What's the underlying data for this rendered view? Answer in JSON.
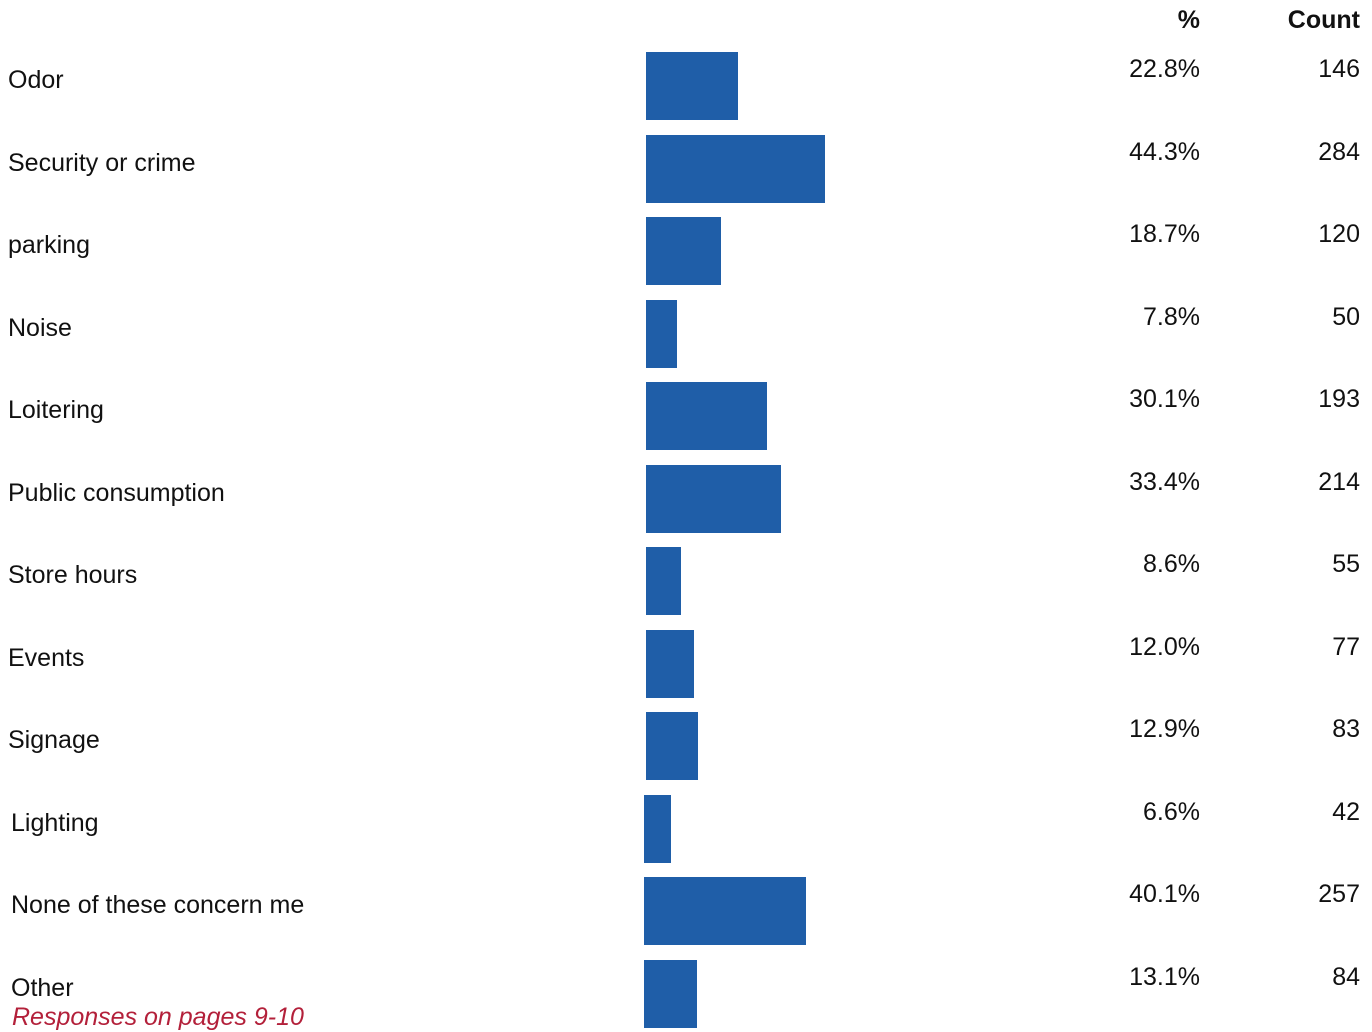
{
  "chart_data": {
    "type": "bar",
    "orientation": "horizontal",
    "columns": {
      "percent": "%",
      "count": "Count"
    },
    "categories": [
      "Odor",
      "Security or crime",
      "parking",
      "Noise",
      "Loitering",
      "Public consumption",
      "Store hours",
      "Events",
      "Signage",
      "Lighting",
      "None of these concern me",
      "Other"
    ],
    "percents": [
      22.8,
      44.3,
      18.7,
      7.8,
      30.1,
      33.4,
      8.6,
      12.0,
      12.9,
      6.6,
      40.1,
      13.1
    ],
    "percent_labels": [
      "22.8%",
      "44.3%",
      "18.7%",
      "7.8%",
      "30.1%",
      "33.4%",
      "8.6%",
      "12.0%",
      "12.9%",
      "6.6%",
      "40.1%",
      "13.1%"
    ],
    "counts": [
      146,
      284,
      120,
      50,
      193,
      214,
      55,
      77,
      83,
      42,
      257,
      84
    ],
    "bar_color": "#1f5ea8",
    "footnote": "Responses on pages 9-10",
    "footnote_color": "#b3203a"
  }
}
